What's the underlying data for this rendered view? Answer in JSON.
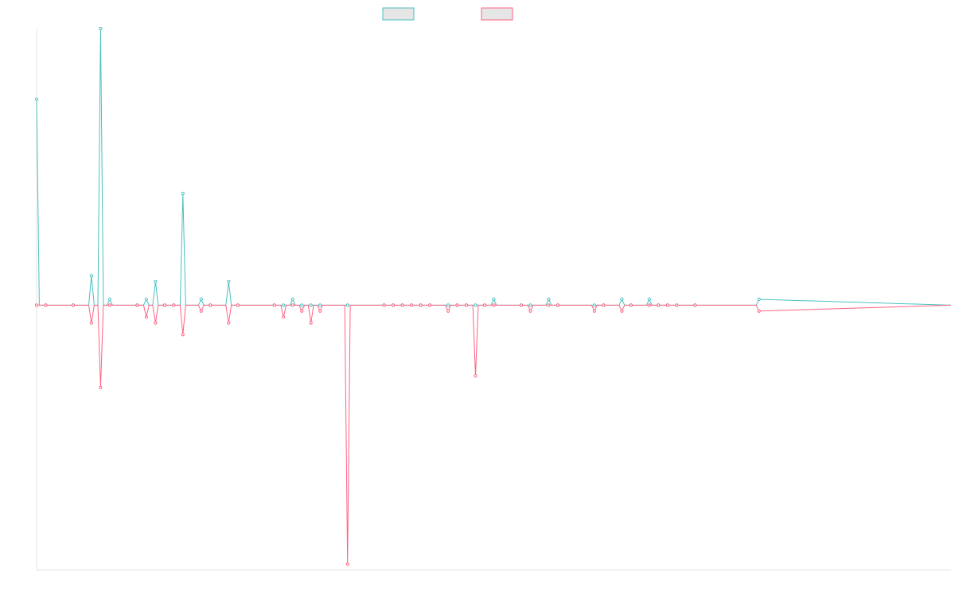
{
  "chart_data": {
    "type": "line",
    "title": "",
    "xlabel": "",
    "ylabel": "",
    "ylim": [
      -45,
      47
    ],
    "grid": false,
    "legend": "top-center",
    "x": [
      0,
      1,
      4,
      6,
      7,
      8,
      11,
      12,
      13,
      14,
      15,
      16,
      18,
      19,
      21,
      22,
      26,
      27,
      28,
      29,
      30,
      31,
      34,
      38,
      39,
      40,
      41,
      42,
      43,
      45,
      46,
      47,
      48,
      49,
      50,
      53,
      54,
      56,
      57,
      61,
      62,
      64,
      65,
      67,
      68,
      69,
      70,
      72,
      79
    ],
    "series": [
      {
        "name": "",
        "color": "#4bc0c0",
        "values": [
          35,
          0,
          0,
          5,
          47,
          1,
          0,
          1,
          4,
          0,
          0,
          19,
          1,
          0,
          4,
          0,
          0,
          0,
          1,
          0,
          0,
          0,
          0,
          0,
          0,
          0,
          0,
          0,
          0,
          0,
          0,
          0,
          0,
          0,
          1,
          0,
          0,
          1,
          0,
          0,
          0,
          1,
          0,
          1,
          0,
          0,
          0,
          0,
          1
        ]
      },
      {
        "name": "",
        "color": "#ff6384",
        "values": [
          0,
          0,
          0,
          -3,
          -14,
          0,
          0,
          -2,
          -3,
          0,
          0,
          -5,
          -1,
          0,
          -3,
          0,
          0,
          -2,
          0,
          -1,
          -3,
          -1,
          -44,
          0,
          0,
          0,
          0,
          0,
          0,
          -1,
          0,
          0,
          -12,
          0,
          0,
          0,
          -1,
          0,
          0,
          -1,
          0,
          -1,
          0,
          0,
          0,
          0,
          0,
          0,
          -1
        ]
      }
    ]
  }
}
